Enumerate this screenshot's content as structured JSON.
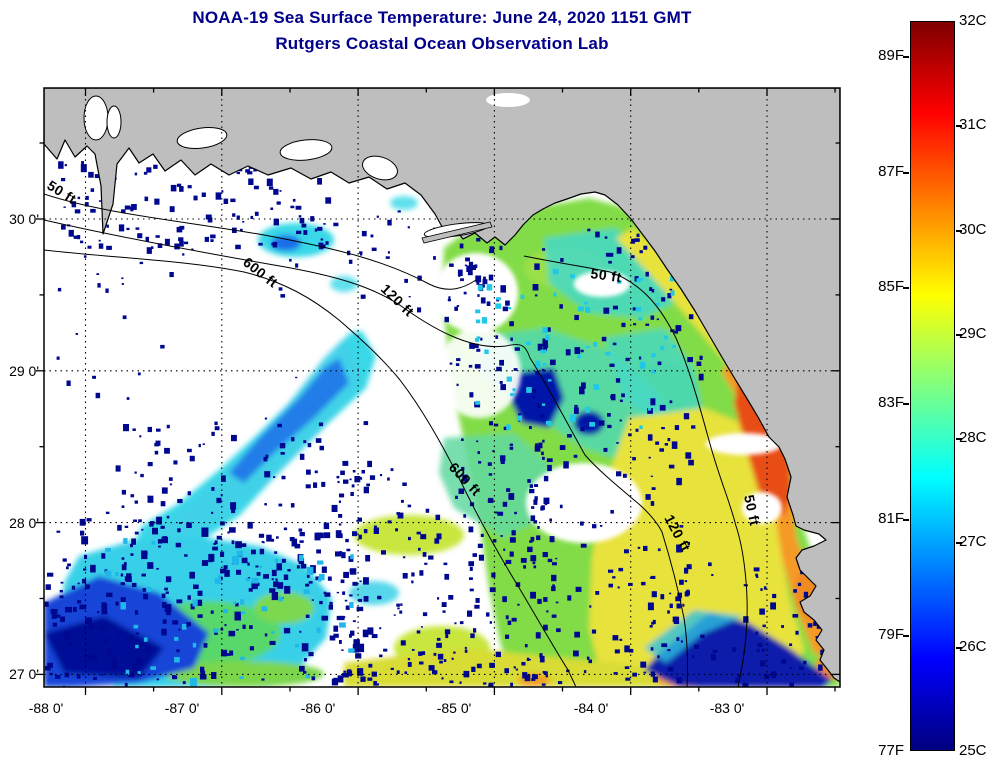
{
  "title": {
    "line1": "NOAA-19 Sea Surface Temperature:  June 24, 2020 1151 GMT",
    "line2": "Rutgers Coastal Ocean Observation Lab",
    "color": "#00008B"
  },
  "map": {
    "x_tick_labels": [
      "-88 0'",
      "-87 0'",
      "-86 0'",
      "-85 0'",
      "-84 0'",
      "-83 0'"
    ],
    "y_tick_labels": [
      "30 0'",
      "29 0'",
      "28 0'",
      "27 0'"
    ],
    "contour_labels": [
      "50 ft",
      "600 ft",
      "120 ft",
      "50 ft",
      "600 ft",
      "120 ft",
      "50 ft"
    ],
    "colors": {
      "land": "#BEBEBE",
      "cloud": "#FFFFFF",
      "cold_speckle": "#000890",
      "warm_core": "#E84E12"
    }
  },
  "colorbar": {
    "celsius_labels": [
      "32C",
      "31C",
      "30C",
      "29C",
      "28C",
      "27C",
      "26C",
      "25C"
    ],
    "fahrenheit_labels": [
      "89F",
      "87F",
      "85F",
      "83F",
      "81F",
      "79F",
      "77F"
    ],
    "gradient_top_to_bottom": [
      "#7F0000",
      "#FF0000",
      "#FFFF00",
      "#00FFFF",
      "#0000FF",
      "#00007F"
    ],
    "gradient_stops_pct": [
      0,
      12.5,
      37.5,
      62.5,
      87.5,
      100
    ]
  },
  "chart_data": {
    "type": "heatmap",
    "title": "NOAA-19 Sea Surface Temperature:  June 24, 2020 1151 GMT",
    "subtitle": "Rutgers Coastal Ocean Observation Lab",
    "x_tick_labels": [
      "-88 0'",
      "-87 0'",
      "-86 0'",
      "-85 0'",
      "-84 0'",
      "-83 0'"
    ],
    "y_tick_labels": [
      "30 0'",
      "29 0'",
      "28 0'",
      "27 0'"
    ],
    "colorbar_celsius_labels": [
      "32C",
      "31C",
      "30C",
      "29C",
      "28C",
      "27C",
      "26C",
      "25C"
    ],
    "colorbar_fahrenheit_labels": [
      "89F",
      "87F",
      "85F",
      "83F",
      "81F",
      "79F",
      "77F"
    ],
    "depth_contour_labels": [
      "50 ft",
      "120 ft",
      "600 ft"
    ],
    "legend_position": "right"
  }
}
